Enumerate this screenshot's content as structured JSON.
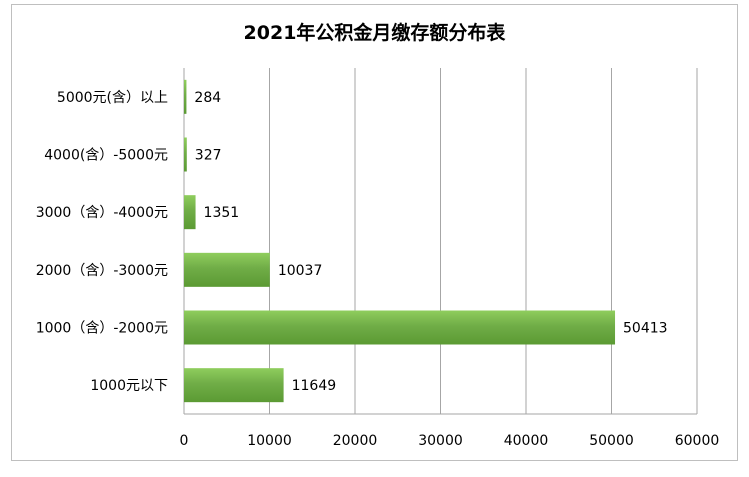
{
  "chart_data": {
    "type": "bar",
    "orientation": "horizontal",
    "title": "2021年公积金月缴存额分布表",
    "categories": [
      "5000元(含）以上",
      "4000(含）-5000元",
      "3000（含）-4000元",
      "2000（含）-3000元",
      "1000（含）-2000元",
      "1000元以下"
    ],
    "values": [
      284,
      327,
      1351,
      10037,
      50413,
      11649
    ],
    "xlim": [
      0,
      60000
    ],
    "xticks": [
      0,
      10000,
      20000,
      30000,
      40000,
      50000,
      60000
    ],
    "grid": true,
    "legend": "none",
    "bar_color": "#70ad47",
    "bar_color_light": "#8fcd5d",
    "bar_color_dark": "#5b9a33"
  }
}
